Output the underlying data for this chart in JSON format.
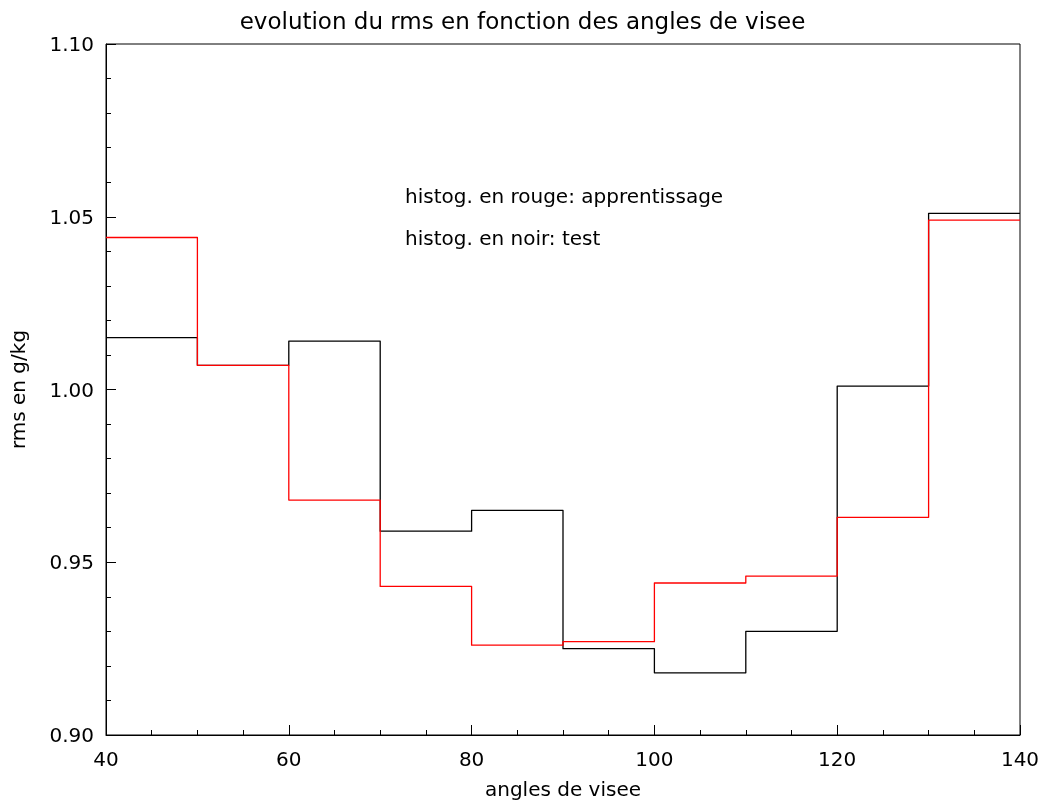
{
  "chart_data": {
    "type": "histogram",
    "title": "evolution du rms en fonction des angles de visee",
    "xlabel": "angles de visee",
    "ylabel": "rms en g/kg",
    "bins": [
      40,
      50,
      60,
      70,
      80,
      90,
      100,
      110,
      120,
      130,
      140
    ],
    "series": [
      {
        "color": "#000000",
        "values": [
          1.015,
          1.007,
          1.014,
          0.959,
          0.965,
          0.925,
          0.918,
          0.93,
          1.001,
          1.051
        ]
      },
      {
        "color": "#ff0000",
        "values": [
          1.044,
          1.007,
          0.968,
          0.943,
          0.926,
          0.927,
          0.944,
          0.946,
          0.963,
          1.049
        ]
      }
    ],
    "annotations": [
      "histog. en rouge: apprentissage",
      "histog. en noir: test"
    ],
    "xlim": [
      40,
      140
    ],
    "xticks": [
      40,
      60,
      80,
      100,
      120,
      140
    ],
    "ylim": [
      0.9,
      1.1
    ],
    "yticks": [
      {
        "value": 0.9,
        "label": "0.90"
      },
      {
        "value": 0.95,
        "label": "0.95"
      },
      {
        "value": 1.0,
        "label": "1.00"
      },
      {
        "value": 1.05,
        "label": "1.05"
      },
      {
        "value": 1.1,
        "label": "1.10"
      }
    ],
    "grid": false
  }
}
